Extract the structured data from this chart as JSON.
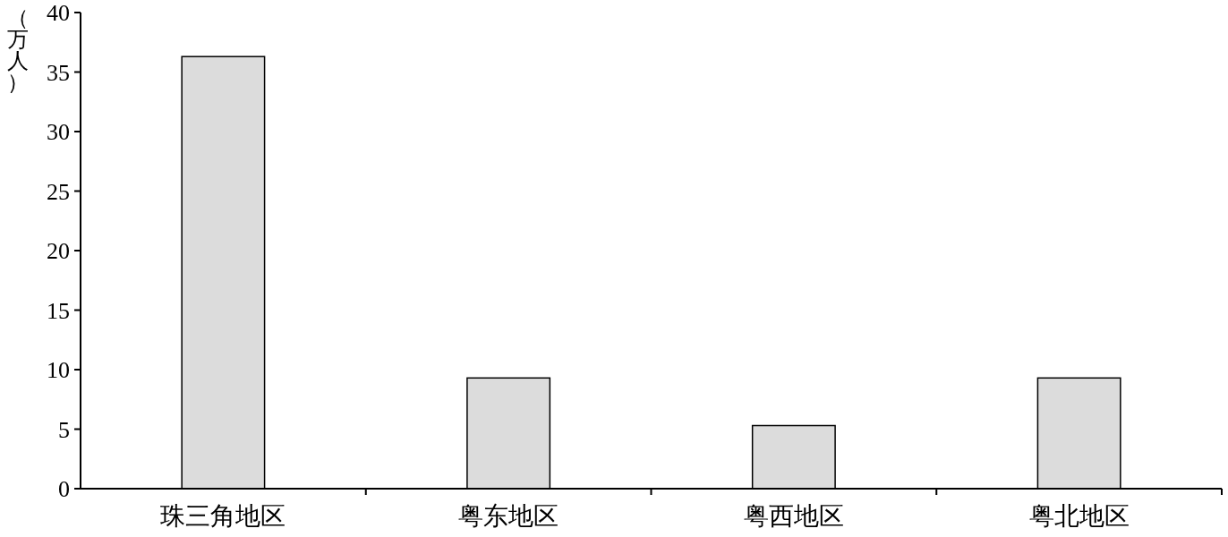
{
  "chart_data": {
    "type": "bar",
    "ylabel": "（万人）",
    "categories": [
      "珠三角地区",
      "粤东地区",
      "粤西地区",
      "粤北地区"
    ],
    "values": [
      36.3,
      9.3,
      5.3,
      9.3
    ],
    "color": "#dcdcdc",
    "ylim": [
      0,
      40
    ],
    "yticks": [
      0,
      5,
      10,
      15,
      20,
      25,
      30,
      35,
      40
    ]
  }
}
